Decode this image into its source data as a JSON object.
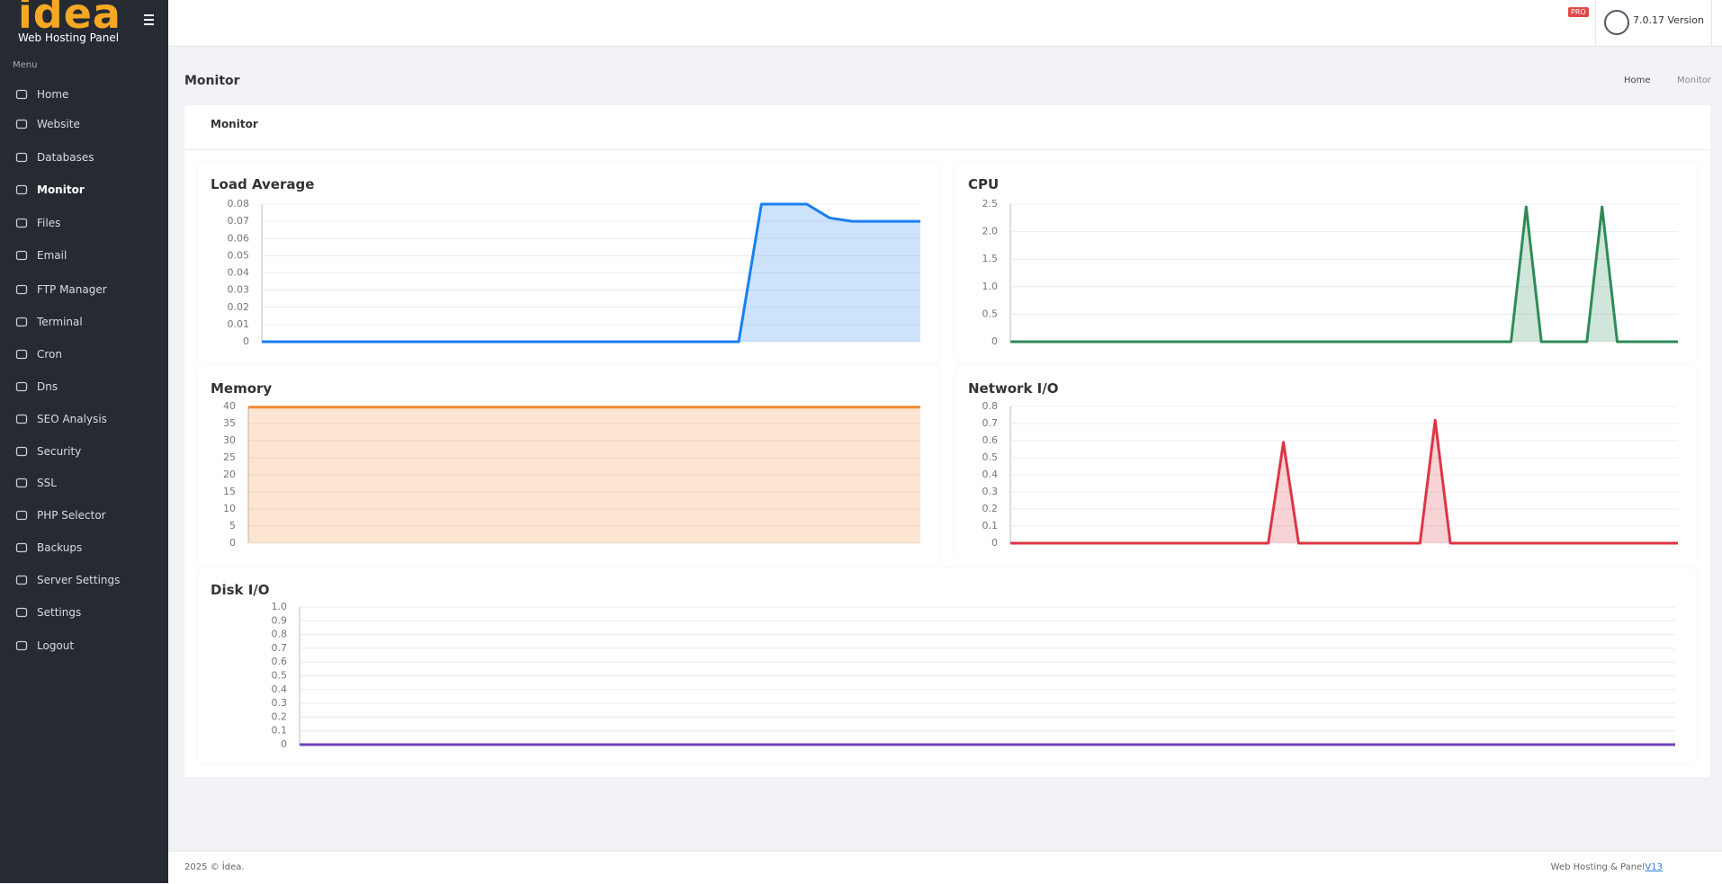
{
  "logo": {
    "brand": "idea",
    "subtitle": "Web Hosting Panel"
  },
  "topbar": {
    "badge": "PRO",
    "version": "7.0.17 Version"
  },
  "sidebar": {
    "menu_label": "Menu",
    "items": [
      "Home",
      "Website",
      "Databases",
      "Monitor",
      "Files",
      "Email",
      "FTP Manager",
      "Terminal",
      "Cron",
      "Dns",
      "SEO Analysis",
      "Security",
      "SSL",
      "PHP Selector",
      "Backups",
      "Server Settings",
      "Settings",
      "Logout"
    ]
  },
  "page": {
    "title": "Monitor",
    "breadcrumb": [
      "Home",
      "Monitor"
    ],
    "card_title": "Monitor"
  },
  "charts": [
    {
      "type": "line",
      "title": "Load Average",
      "color": "#1a7ff0",
      "ylim": [
        0,
        0.08
      ],
      "yticks": [
        0,
        0.01,
        0.02,
        0.03,
        0.04,
        0.05,
        0.06,
        0.07,
        0.08
      ],
      "values": [
        0,
        0,
        0,
        0,
        0,
        0,
        0,
        0,
        0,
        0,
        0,
        0,
        0,
        0,
        0,
        0,
        0,
        0,
        0,
        0,
        0,
        0,
        0.08,
        0.08,
        0.08,
        0.072,
        0.07,
        0.07,
        0.07,
        0.07
      ]
    },
    {
      "type": "line",
      "title": "CPU",
      "color": "#2e8b57",
      "ylim": [
        0,
        2.5
      ],
      "yticks": [
        0,
        0.5,
        {
          "value": 1,
          "label": "1.0"
        },
        1.5,
        {
          "value": 2,
          "label": "2.0"
        },
        2.5
      ],
      "values": [
        0,
        0,
        0,
        0,
        0,
        0,
        0,
        0,
        0,
        0,
        0,
        0,
        0,
        0,
        0,
        0,
        0,
        0,
        0,
        0,
        0,
        0,
        0,
        0,
        0,
        0,
        0,
        0,
        0,
        0,
        0,
        0,
        0,
        0,
        2.45,
        0,
        0,
        0,
        0,
        2.45,
        0,
        0,
        0,
        0,
        0
      ]
    },
    {
      "type": "line",
      "title": "Memory",
      "color": "#f28b30",
      "ylim": [
        0,
        40
      ],
      "yticks": [
        0,
        5,
        10,
        15,
        20,
        25,
        30,
        35,
        40
      ],
      "values": [
        39.8,
        39.8,
        39.8,
        39.8,
        39.8,
        39.8,
        39.8,
        39.8,
        39.8,
        39.8,
        39.8,
        39.8,
        39.8,
        39.8,
        39.8,
        39.8,
        39.8,
        39.8,
        39.8,
        39.8,
        39.8,
        39.8,
        39.8,
        39.8,
        39.8,
        39.8,
        39.8,
        39.8,
        39.8,
        39.8
      ]
    },
    {
      "type": "line",
      "title": "Network I/O",
      "color": "#dc3545",
      "ylim": [
        0,
        0.8
      ],
      "yticks": [
        0,
        0.1,
        0.2,
        0.3,
        0.4,
        0.5,
        0.6,
        0.7,
        0.8
      ],
      "values": [
        0,
        0,
        0,
        0,
        0,
        0,
        0,
        0,
        0,
        0,
        0,
        0,
        0,
        0,
        0,
        0,
        0,
        0,
        0.59,
        0,
        0,
        0,
        0,
        0,
        0,
        0,
        0,
        0,
        0.72,
        0,
        0,
        0,
        0,
        0,
        0,
        0,
        0,
        0,
        0,
        0,
        0,
        0,
        0,
        0,
        0
      ]
    },
    {
      "type": "line",
      "title": "Disk I/O",
      "color": "#6f42c1",
      "ylim": [
        0,
        1
      ],
      "yticks": [
        0,
        0.1,
        0.2,
        0.3,
        0.4,
        0.5,
        0.6,
        0.7,
        0.8,
        0.9,
        {
          "value": 1,
          "label": "1.0"
        }
      ],
      "values": [
        0,
        0,
        0,
        0,
        0,
        0,
        0,
        0,
        0,
        0,
        0,
        0,
        0,
        0,
        0,
        0,
        0,
        0,
        0,
        0,
        0,
        0,
        0,
        0,
        0,
        0,
        0,
        0,
        0,
        0
      ]
    }
  ],
  "footer": {
    "copyright": "2025 © İdea.",
    "right": "Web Hosting & Panel",
    "link": "V13"
  }
}
